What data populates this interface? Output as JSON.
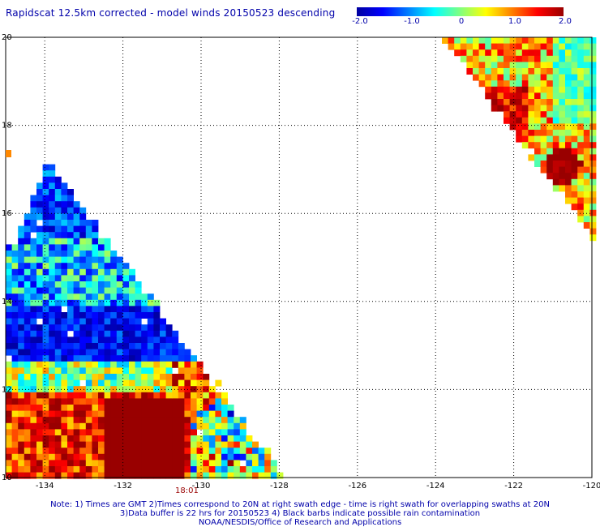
{
  "header": {
    "title": "Rapidscat 12.5km corrected - model winds 20150523 descending"
  },
  "colorbar": {
    "labels": [
      "-2.0",
      "-1.0",
      "0",
      "1.0",
      "2.0"
    ],
    "stops": [
      "#0000a0",
      "#0000ff",
      "#0080ff",
      "#00ffff",
      "#80ff80",
      "#ffff00",
      "#ff8000",
      "#ff0000",
      "#990000"
    ]
  },
  "map": {
    "lon_range": [
      -135,
      -120
    ],
    "lat_range": [
      10,
      20
    ],
    "lon_ticks": [
      "-134",
      "-132",
      "-130",
      "-128",
      "-126",
      "-124",
      "-122",
      "-120"
    ],
    "lat_ticks": [
      "20",
      "18",
      "16",
      "14",
      "12",
      "10"
    ],
    "gridlines": true
  },
  "annotations": {
    "time": "18:01"
  },
  "notes": {
    "line1": "Note: 1) Times are GMT 2)Times correspond to 20N at right swath edge - time is right swath for overlapping swaths at 20N",
    "line2": "3)Data buffer is 22 hrs for 20150523 4) Black barbs indicate possible rain contamination",
    "line3": "NOAA/NESDIS/Office of Research and Applications"
  }
}
